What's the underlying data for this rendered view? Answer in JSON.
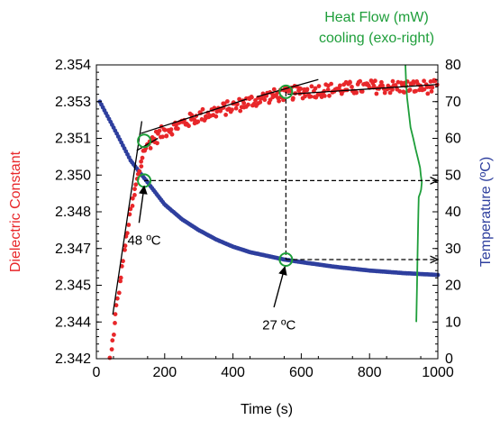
{
  "chart_data": {
    "type": "scatter",
    "xlabel": "Time (s)",
    "ylabel_left": "Dielectric Constant",
    "ylabel_right": "Temperature (ºC)",
    "heat_flow_label_1": "Heat Flow (mW)",
    "heat_flow_label_2": "cooling  (exo-right)",
    "xlim": [
      0,
      1000
    ],
    "ylim_left": [
      2.342,
      2.354
    ],
    "ylim_right": [
      0,
      80
    ],
    "x_ticks": [
      0,
      200,
      400,
      600,
      800,
      1000
    ],
    "y_left_ticks": [
      "2.342",
      "2.344",
      "2.345",
      "2.347",
      "2.348",
      "2.350",
      "2.351",
      "2.353",
      "2.354"
    ],
    "y_left_tick_values": [
      2.342,
      2.3435,
      2.345,
      2.3465,
      2.348,
      2.3495,
      2.351,
      2.3525,
      2.354
    ],
    "y_right_ticks": [
      0,
      10,
      20,
      30,
      40,
      50,
      60,
      70,
      80
    ],
    "grid": false,
    "colors": {
      "dielectric": "#e8272a",
      "temperature": "#2e3f9e",
      "heat_flow": "#1e9e3a",
      "markers": "#1e9e3a",
      "lines": "#000000",
      "left_axis_label": "#e8272a",
      "right_axis_label": "#2e3f9e",
      "heat_flow_label": "#1e9e3a"
    },
    "series": [
      {
        "name": "Dielectric Constant",
        "axis": "left",
        "anchors": [
          [
            40,
            2.342
          ],
          [
            60,
            2.3442
          ],
          [
            80,
            2.3462
          ],
          [
            100,
            2.348
          ],
          [
            120,
            2.3493
          ],
          [
            140,
            2.3505
          ],
          [
            160,
            2.3509
          ],
          [
            200,
            2.3513
          ],
          [
            250,
            2.3516
          ],
          [
            300,
            2.3519
          ],
          [
            350,
            2.3521
          ],
          [
            400,
            2.3523
          ],
          [
            450,
            2.3525
          ],
          [
            500,
            2.3527
          ],
          [
            550,
            2.3528
          ],
          [
            600,
            2.3529
          ],
          [
            700,
            2.353
          ],
          [
            800,
            2.3531
          ],
          [
            900,
            2.3531
          ],
          [
            1000,
            2.3531
          ]
        ]
      },
      {
        "name": "Temperature",
        "axis": "right",
        "anchors": [
          [
            10,
            70
          ],
          [
            50,
            63
          ],
          [
            100,
            54
          ],
          [
            150,
            48
          ],
          [
            200,
            42
          ],
          [
            250,
            38
          ],
          [
            300,
            35
          ],
          [
            350,
            32.5
          ],
          [
            400,
            30.5
          ],
          [
            450,
            29
          ],
          [
            500,
            28
          ],
          [
            550,
            27
          ],
          [
            600,
            26.3
          ],
          [
            700,
            25
          ],
          [
            800,
            24
          ],
          [
            900,
            23.3
          ],
          [
            1000,
            22.8
          ]
        ]
      },
      {
        "name": "Heat Flow",
        "axis": "right",
        "path": [
          [
            905,
            80
          ],
          [
            907,
            75
          ],
          [
            910,
            71
          ],
          [
            915,
            67
          ],
          [
            920,
            63
          ],
          [
            928,
            60
          ],
          [
            935,
            57
          ],
          [
            943,
            54
          ],
          [
            948,
            52
          ],
          [
            950,
            50
          ],
          [
            953,
            48
          ],
          [
            951,
            46
          ],
          [
            948,
            45
          ],
          [
            944,
            44
          ],
          [
            943,
            40
          ],
          [
            941,
            30
          ],
          [
            939,
            20
          ],
          [
            937,
            10
          ]
        ]
      }
    ],
    "fit_lines": [
      [
        [
          48,
          2.3438
        ],
        [
          133,
          2.3517
        ]
      ],
      [
        [
          118,
          2.3505
        ],
        [
          180,
          2.351
        ]
      ],
      [
        [
          130,
          2.3512
        ],
        [
          440,
          2.3526
        ]
      ],
      [
        [
          470,
          2.3527
        ],
        [
          650,
          2.3534
        ]
      ],
      [
        [
          560,
          2.3528
        ],
        [
          1000,
          2.3532
        ]
      ]
    ],
    "markers": [
      {
        "x": 140,
        "y": 2.3509,
        "axis": "left"
      },
      {
        "x": 140,
        "y": 48.5,
        "axis": "right"
      },
      {
        "x": 555,
        "y": 2.3529,
        "axis": "left"
      },
      {
        "x": 555,
        "y": 27,
        "axis": "right"
      }
    ],
    "dashed_lines": [
      {
        "from": [
          140,
          48.5
        ],
        "to": [
          1000,
          48.5
        ],
        "arrow": true
      },
      {
        "from": [
          555,
          27
        ],
        "to": [
          1000,
          27
        ],
        "arrow": true
      },
      {
        "from_left": [
          555,
          2.3529
        ],
        "to_right": [
          555,
          27
        ],
        "arrow": false
      }
    ],
    "annotations": [
      {
        "label": "48 ºC",
        "pointer_from": [
          125,
          37
        ],
        "pointer_to": [
          140,
          47
        ],
        "text_at": [
          140,
          31
        ]
      },
      {
        "label": "27 ºC",
        "pointer_from": [
          520,
          14
        ],
        "pointer_to": [
          552,
          25
        ],
        "text_at": [
          535,
          8
        ]
      }
    ]
  }
}
